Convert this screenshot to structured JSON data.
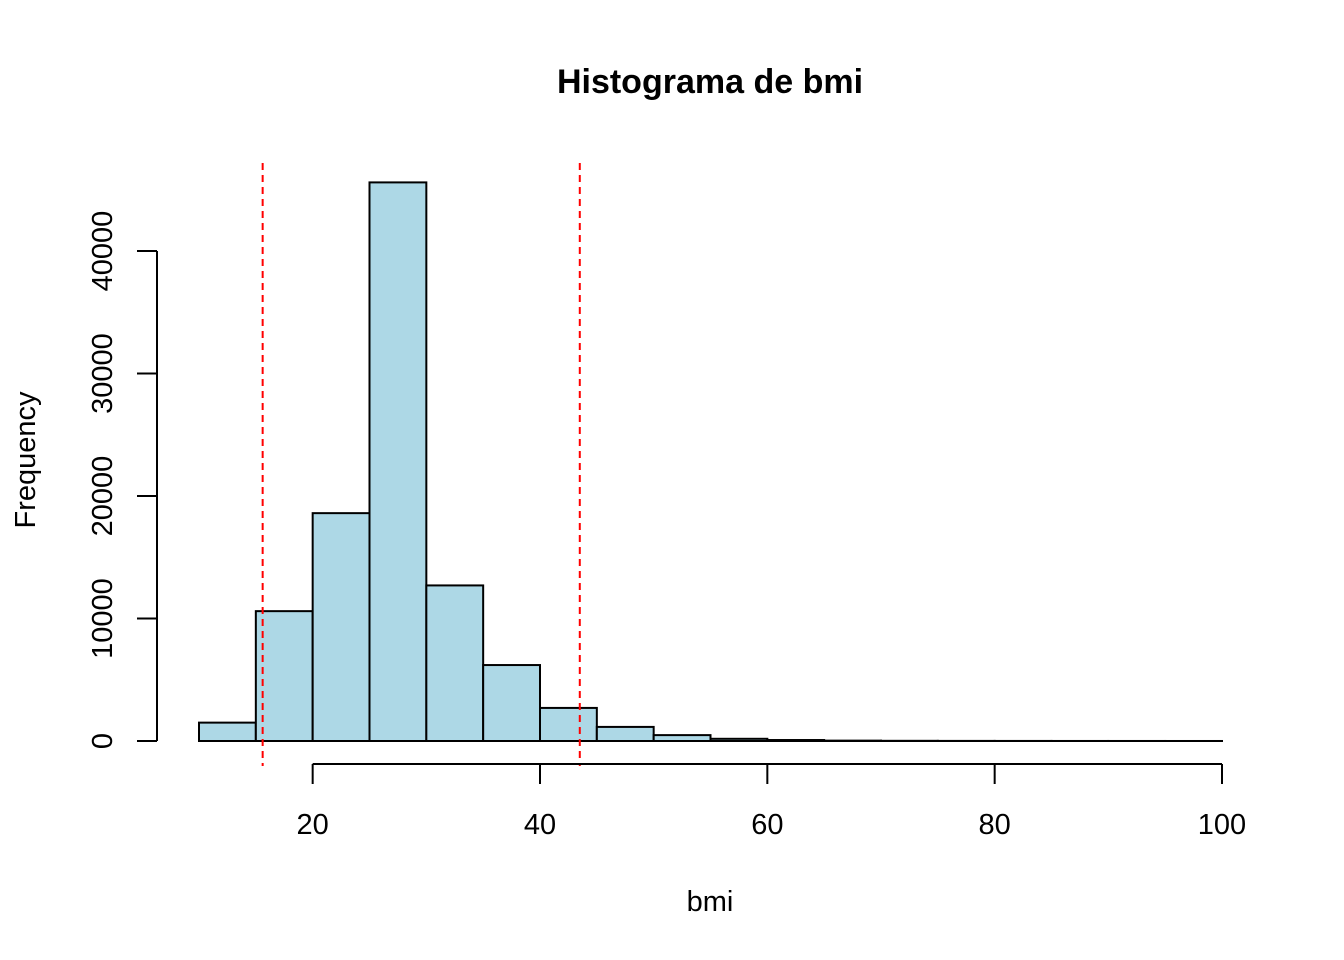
{
  "chart_data": {
    "type": "bar",
    "title": "Histograma de bmi",
    "xlabel": "bmi",
    "ylabel": "Frequency",
    "bin_edges": [
      10,
      15,
      20,
      25,
      30,
      35,
      40,
      45,
      50,
      55,
      60,
      65,
      70,
      75,
      80,
      85,
      90,
      95,
      100
    ],
    "values": [
      1500,
      10600,
      18600,
      45600,
      12700,
      6200,
      2700,
      1150,
      480,
      180,
      80,
      30,
      15,
      8,
      5,
      3,
      2,
      1
    ],
    "x_ticks": [
      20,
      40,
      60,
      80,
      100
    ],
    "x_tick_labels": [
      "20",
      "40",
      "60",
      "80",
      "100"
    ],
    "y_ticks": [
      0,
      10000,
      20000,
      30000,
      40000
    ],
    "y_tick_labels": [
      "0",
      "10000",
      "20000",
      "30000",
      "40000"
    ],
    "xlim": [
      10,
      100
    ],
    "ylim": [
      0,
      47000
    ],
    "bar_fill": "#add8e6",
    "bar_edge": "#000000",
    "reference_lines": [
      {
        "x": 15.6,
        "color": "#ff0000",
        "style": "dashed"
      },
      {
        "x": 43.5,
        "color": "#ff0000",
        "style": "dashed"
      }
    ],
    "grid": false,
    "legend": "none"
  }
}
